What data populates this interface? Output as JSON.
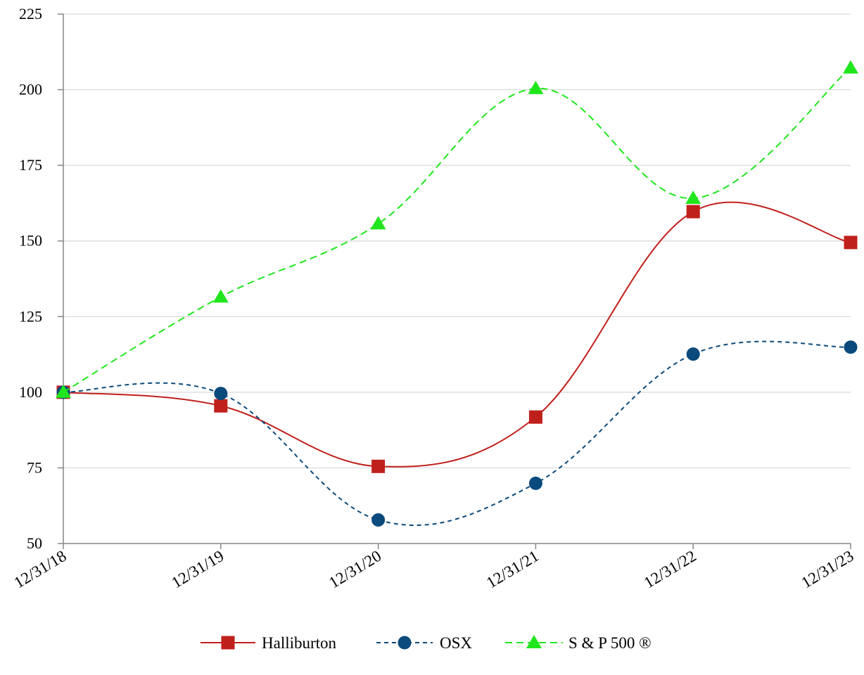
{
  "chart_data": {
    "type": "line",
    "title": "",
    "xlabel": "",
    "ylabel": "",
    "categories": [
      "12/31/18",
      "12/31/19",
      "12/31/20",
      "12/31/21",
      "12/31/22",
      "12/31/23"
    ],
    "ylim": [
      50,
      225
    ],
    "yticks": [
      50,
      75,
      100,
      125,
      150,
      175,
      200,
      225
    ],
    "grid": true,
    "legend": "bottom",
    "series": [
      {
        "name": "Halliburton",
        "values": [
          100,
          95.5,
          75.5,
          91.8,
          159.7,
          149.5
        ],
        "color": "#c0201c",
        "marker": "square",
        "dash": "solid"
      },
      {
        "name": "OSX",
        "values": [
          100,
          99.6,
          57.8,
          69.9,
          112.6,
          114.9
        ],
        "color": "#0b4a7c",
        "marker": "circle",
        "dash": "dashed"
      },
      {
        "name": "S & P 500 ®",
        "values": [
          100,
          131.5,
          155.7,
          200.4,
          164.1,
          207.2
        ],
        "color": "#21e61e",
        "marker": "triangle",
        "dash": "dashed"
      }
    ]
  }
}
